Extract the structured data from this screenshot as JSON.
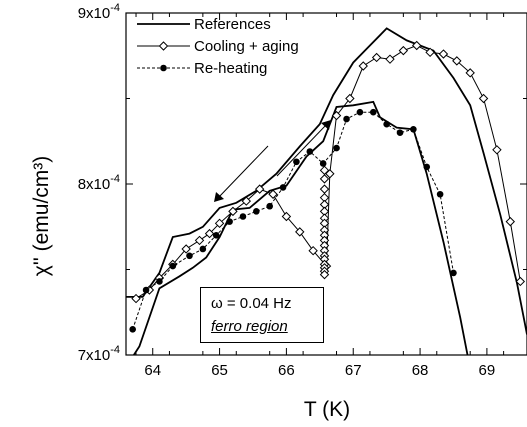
{
  "chart_data": {
    "type": "line",
    "xlabel": "T (K)",
    "ylabel": "χ'' (emu/cm³)",
    "xlim": [
      63.6,
      69.6
    ],
    "ylim": [
      0.0007,
      0.0009
    ],
    "x_ticks": [
      64,
      65,
      66,
      67,
      68,
      69
    ],
    "x_tick_labels": [
      "64",
      "65",
      "66",
      "67",
      "68",
      "69"
    ],
    "y_ticks": [
      0.0007,
      0.0008,
      0.0009
    ],
    "y_tick_labels": [
      "7x10-4",
      "8x10-4",
      "9x10-4"
    ],
    "grid": false,
    "legend_position": "top-left",
    "annotation_lines": [
      "ω = 0.04 Hz",
      "ferro region"
    ],
    "series": [
      {
        "name": "References",
        "style": "solid-thick",
        "color": "#000000",
        "x": [
          63.6,
          63.85,
          64.1,
          64.3,
          64.55,
          64.75,
          65.0,
          65.25,
          65.55,
          65.85,
          66.2,
          66.5,
          66.7,
          67.0,
          67.2,
          67.5,
          67.8,
          68.2,
          68.5,
          68.75,
          68.95,
          69.2,
          69.45,
          69.6
        ],
        "y": [
          0.000734,
          0.000734,
          0.000748,
          0.000769,
          0.000771,
          0.000775,
          0.000786,
          0.000789,
          0.000796,
          0.000806,
          0.000822,
          0.000835,
          0.000852,
          0.000871,
          0.000879,
          0.000891,
          0.000884,
          0.000878,
          0.000862,
          0.000846,
          0.000818,
          0.000782,
          0.000742,
          0.000712
        ]
      },
      {
        "name": "References",
        "style": "solid-thick",
        "color": "#000000",
        "x": [
          63.6,
          63.8,
          64.1,
          64.4,
          64.6,
          64.8,
          65.0,
          65.2,
          65.45,
          65.75,
          66.0,
          66.3,
          66.55,
          66.75,
          67.0,
          67.3,
          67.4,
          67.65,
          67.9,
          68.1,
          68.35,
          68.6,
          68.75
        ],
        "y": [
          0.000693,
          0.000705,
          0.000739,
          0.000746,
          0.000751,
          0.000757,
          0.000769,
          0.000785,
          0.000786,
          0.000796,
          0.000799,
          0.000816,
          0.000825,
          0.000845,
          0.000846,
          0.000848,
          0.000839,
          0.000833,
          0.000832,
          0.000806,
          0.000766,
          0.000722,
          0.000692
        ]
      },
      {
        "name": "Cooling + aging",
        "style": "solid-thin",
        "marker": "open-diamond",
        "color": "#000000",
        "x": [
          63.75,
          63.95,
          64.1,
          64.3,
          64.5,
          64.7,
          64.85,
          65.0,
          65.2,
          65.4,
          65.6,
          65.8,
          66.0,
          66.2,
          66.4,
          66.6,
          66.65,
          66.75,
          66.95,
          67.15,
          67.35,
          67.55,
          67.75,
          67.95,
          68.15,
          68.35,
          68.55,
          68.75,
          68.95,
          69.15,
          69.35,
          69.5
        ],
        "y": [
          0.000733,
          0.000738,
          0.000745,
          0.000753,
          0.000762,
          0.000767,
          0.000771,
          0.000777,
          0.000784,
          0.00079,
          0.000797,
          0.000794,
          0.000781,
          0.000772,
          0.000761,
          0.000752,
          0.000806,
          0.00084,
          0.00085,
          0.000869,
          0.000874,
          0.000873,
          0.000878,
          0.000881,
          0.000877,
          0.000876,
          0.000872,
          0.000865,
          0.00085,
          0.00082,
          0.000778,
          0.000743
        ]
      },
      {
        "name": "Re-heating",
        "style": "dashed",
        "marker": "filled-circle",
        "color": "#000000",
        "x": [
          63.7,
          63.9,
          64.1,
          64.3,
          64.55,
          64.75,
          64.95,
          65.15,
          65.35,
          65.55,
          65.75,
          65.95,
          66.15,
          66.35,
          66.55,
          66.75,
          66.9,
          67.1,
          67.3,
          67.5,
          67.7,
          67.9,
          68.1,
          68.3,
          68.5
        ],
        "y": [
          0.000715,
          0.000738,
          0.000743,
          0.000752,
          0.000758,
          0.000762,
          0.00077,
          0.000778,
          0.000781,
          0.000784,
          0.000787,
          0.000798,
          0.000813,
          0.000819,
          0.000812,
          0.000821,
          0.000838,
          0.000842,
          0.000842,
          0.000835,
          0.00083,
          0.000832,
          0.00081,
          0.000794,
          0.000748
        ]
      }
    ]
  }
}
